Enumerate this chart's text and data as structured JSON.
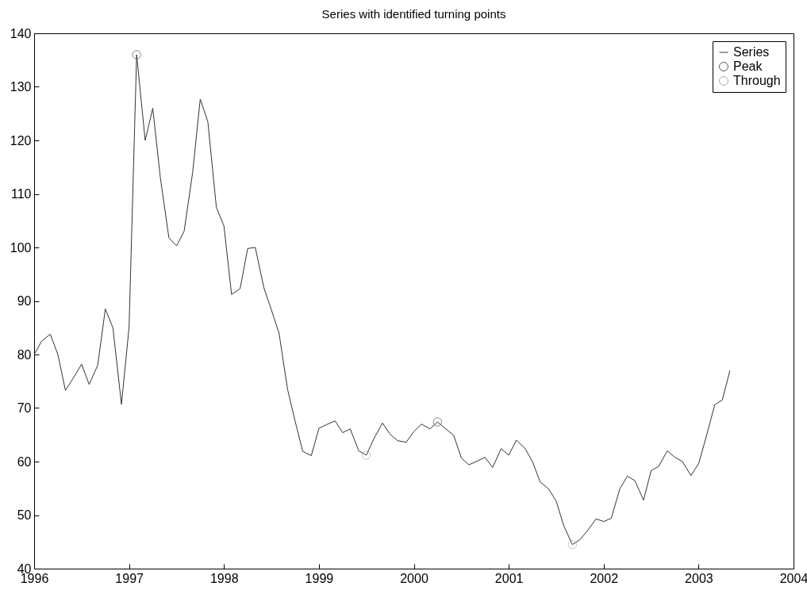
{
  "chart_data": {
    "type": "line",
    "title": "Series with identified turning points",
    "xlim": [
      1996,
      2004
    ],
    "xticks": [
      1996,
      1997,
      1998,
      1999,
      2000,
      2001,
      2002,
      2003,
      2004
    ],
    "ylim": [
      40,
      140
    ],
    "yticks": [
      40,
      50,
      60,
      70,
      80,
      90,
      100,
      110,
      120,
      130,
      140
    ],
    "grid": false,
    "legend": "top right",
    "series": [
      {
        "name": "Series",
        "color": "#333333",
        "marker": "none",
        "x": [
          1996.0,
          1996.08,
          1996.17,
          1996.25,
          1996.33,
          1996.42,
          1996.5,
          1996.58,
          1996.67,
          1996.75,
          1996.83,
          1996.92,
          1997.0,
          1997.08,
          1997.17,
          1997.25,
          1997.33,
          1997.42,
          1997.5,
          1997.58,
          1997.67,
          1997.75,
          1997.83,
          1997.92,
          1998.0,
          1998.08,
          1998.17,
          1998.25,
          1998.33,
          1998.42,
          1998.5,
          1998.58,
          1998.67,
          1998.75,
          1998.83,
          1998.92,
          1999.0,
          1999.08,
          1999.17,
          1999.25,
          1999.33,
          1999.42,
          1999.5,
          1999.58,
          1999.67,
          1999.75,
          1999.83,
          1999.92,
          2000.0,
          2000.08,
          2000.17,
          2000.25,
          2000.33,
          2000.42,
          2000.5,
          2000.58,
          2000.67,
          2000.75,
          2000.83,
          2000.92,
          2001.0,
          2001.08,
          2001.17,
          2001.25,
          2001.33,
          2001.42,
          2001.5,
          2001.58,
          2001.67,
          2001.75,
          2001.83,
          2001.92,
          2002.0,
          2002.08,
          2002.17,
          2002.25,
          2002.33,
          2002.42,
          2002.5,
          2002.58,
          2002.67,
          2002.75,
          2002.83,
          2002.92,
          2003.0,
          2003.08,
          2003.17,
          2003.25,
          2003.33
        ],
        "values": [
          80,
          82.5,
          83.8,
          80,
          73.3,
          75.8,
          78.2,
          74.4,
          78,
          88.5,
          85,
          70.7,
          85,
          136,
          120,
          126,
          113,
          101.8,
          100.3,
          103,
          114,
          127.7,
          123.5,
          107.5,
          104,
          91.2,
          92.3,
          99.8,
          100,
          92.5,
          88.3,
          84,
          73.5,
          67.5,
          61.9,
          61.1,
          66.2,
          66.9,
          67.6,
          65.4,
          66.1,
          62,
          61.2,
          64.3,
          67.2,
          65.1,
          63.9,
          63.6,
          65.6,
          67,
          66.1,
          67.4,
          66.2,
          64.9,
          60.7,
          59.4,
          60.1,
          60.8,
          58.9,
          62.4,
          61.2,
          64,
          62.5,
          60,
          56.2,
          54.9,
          52.6,
          48,
          44.5,
          45.4,
          47.1,
          49.3,
          48.8,
          49.4,
          54.9,
          57.3,
          56.4,
          52.8,
          58.3,
          59.1,
          62,
          60.8,
          60,
          57.4,
          59.6,
          64.6,
          70.6,
          71.5,
          77
        ]
      },
      {
        "name": "Peak",
        "color": "#555555",
        "type": "scatter",
        "marker": "circle",
        "x": [
          1997.08,
          2000.25
        ],
        "values": [
          136,
          67.4
        ]
      },
      {
        "name": "Through",
        "color": "#aaaaaa",
        "type": "scatter",
        "marker": "circle",
        "x": [
          1999.5,
          2001.67
        ],
        "values": [
          61.2,
          44.5
        ]
      }
    ]
  }
}
